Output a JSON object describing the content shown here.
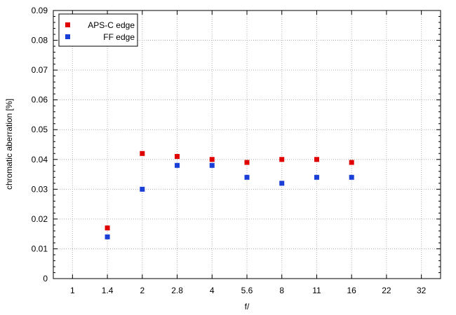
{
  "chart_data": {
    "type": "scatter",
    "title": "",
    "xlabel": "f/",
    "ylabel": "chromatic aberration [%]",
    "categories": [
      "1",
      "1.4",
      "2",
      "2.8",
      "4",
      "5.6",
      "8",
      "11",
      "16",
      "22",
      "32"
    ],
    "ylim": [
      0,
      0.09
    ],
    "yticks": [
      "0",
      "0.01",
      "0.02",
      "0.03",
      "0.04",
      "0.05",
      "0.06",
      "0.07",
      "0.08",
      "0.09"
    ],
    "grid": true,
    "legend_position": "top-left",
    "series": [
      {
        "name": "APS-C edge",
        "color": "#e00000",
        "points": [
          {
            "x": "1.4",
            "y": 0.017
          },
          {
            "x": "2",
            "y": 0.042
          },
          {
            "x": "2.8",
            "y": 0.041
          },
          {
            "x": "4",
            "y": 0.04
          },
          {
            "x": "5.6",
            "y": 0.039
          },
          {
            "x": "8",
            "y": 0.04
          },
          {
            "x": "11",
            "y": 0.04
          },
          {
            "x": "16",
            "y": 0.039
          }
        ]
      },
      {
        "name": "FF edge",
        "color": "#1a3fd6",
        "points": [
          {
            "x": "1.4",
            "y": 0.014
          },
          {
            "x": "2",
            "y": 0.03
          },
          {
            "x": "2.8",
            "y": 0.038
          },
          {
            "x": "4",
            "y": 0.038
          },
          {
            "x": "5.6",
            "y": 0.034
          },
          {
            "x": "8",
            "y": 0.032
          },
          {
            "x": "11",
            "y": 0.034
          },
          {
            "x": "16",
            "y": 0.034
          }
        ]
      }
    ]
  }
}
